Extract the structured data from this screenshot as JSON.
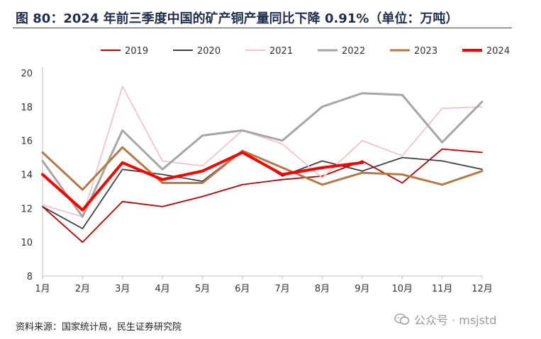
{
  "figure": {
    "title": "图 80：2024 年前三季度中国的矿产铜产量同比下降 0.91%（单位：万吨）",
    "source": "资料来源：国家统计局，民生证券研究院",
    "watermark": "公众号 · msjstd"
  },
  "chart_data": {
    "type": "line",
    "title": "图 80：2024 年前三季度中国的矿产铜产量同比下降 0.91%（单位：万吨）",
    "xlabel": "",
    "ylabel": "",
    "categories": [
      "1月",
      "2月",
      "3月",
      "4月",
      "5月",
      "6月",
      "7月",
      "8月",
      "9月",
      "10月",
      "11月",
      "12月"
    ],
    "ylim": [
      8,
      20
    ],
    "yticks": [
      8,
      10,
      12,
      14,
      16,
      18,
      20
    ],
    "grid": false,
    "legend_position": "top",
    "series": [
      {
        "name": "2019",
        "color": "#c00000",
        "width": 1.8,
        "values": [
          12.1,
          10.0,
          12.4,
          12.1,
          12.7,
          13.4,
          13.7,
          13.9,
          14.8,
          13.5,
          15.5,
          15.3
        ]
      },
      {
        "name": "2020",
        "color": "#404040",
        "width": 1.8,
        "values": [
          12.1,
          10.8,
          14.3,
          14.0,
          13.6,
          15.4,
          13.9,
          14.8,
          14.2,
          15.0,
          14.8,
          14.3
        ]
      },
      {
        "name": "2021",
        "color": "#f2c4c4",
        "width": 1.8,
        "values": [
          12.2,
          11.5,
          19.2,
          14.8,
          14.5,
          16.6,
          15.8,
          13.8,
          16.0,
          15.1,
          17.9,
          18.0
        ]
      },
      {
        "name": "2022",
        "color": "#a6a6a6",
        "width": 3,
        "values": [
          14.8,
          11.5,
          16.6,
          14.3,
          16.3,
          16.6,
          16.0,
          18.0,
          18.8,
          18.7,
          15.9,
          18.3
        ]
      },
      {
        "name": "2023",
        "color": "#b87844",
        "width": 3,
        "values": [
          15.3,
          13.1,
          15.6,
          13.5,
          13.5,
          15.4,
          14.4,
          13.4,
          14.1,
          14.0,
          13.4,
          14.2
        ]
      },
      {
        "name": "2024",
        "color": "#ff0000",
        "width": 4,
        "values": [
          14.0,
          11.9,
          14.7,
          13.7,
          14.2,
          15.3,
          14.0,
          14.4,
          14.7,
          null,
          null,
          null
        ]
      }
    ]
  }
}
